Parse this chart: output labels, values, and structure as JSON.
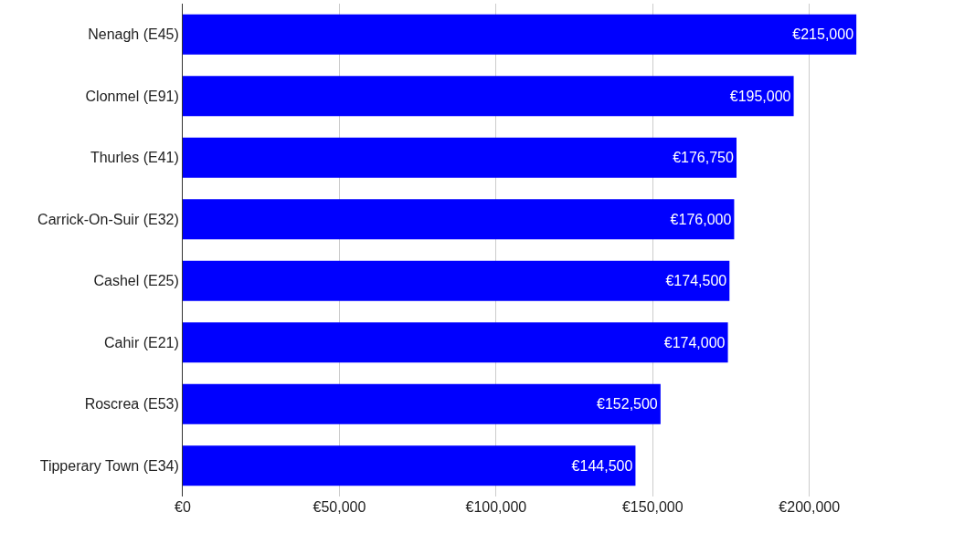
{
  "chart_data": {
    "type": "bar",
    "orientation": "horizontal",
    "categories": [
      "Nenagh (E45)",
      "Clonmel (E91)",
      "Thurles (E41)",
      "Carrick-On-Suir (E32)",
      "Cashel (E25)",
      "Cahir (E21)",
      "Roscrea (E53)",
      "Tipperary Town (E34)"
    ],
    "values": [
      215000,
      195000,
      176750,
      176000,
      174500,
      174000,
      152500,
      144500
    ],
    "value_labels": [
      "€215,000",
      "€195,000",
      "€176,750",
      "€176,000",
      "€174,500",
      "€174,000",
      "€152,500",
      "€144,500"
    ],
    "color": "#0000ff",
    "xlim": [
      0,
      245000
    ],
    "xticks": [
      {
        "value": 0,
        "label": "€0"
      },
      {
        "value": 50000,
        "label": "€50,000"
      },
      {
        "value": 100000,
        "label": "€100,000"
      },
      {
        "value": 150000,
        "label": "€150,000"
      },
      {
        "value": 200000,
        "label": "€200,000"
      }
    ],
    "grid": "x",
    "legend": false
  }
}
